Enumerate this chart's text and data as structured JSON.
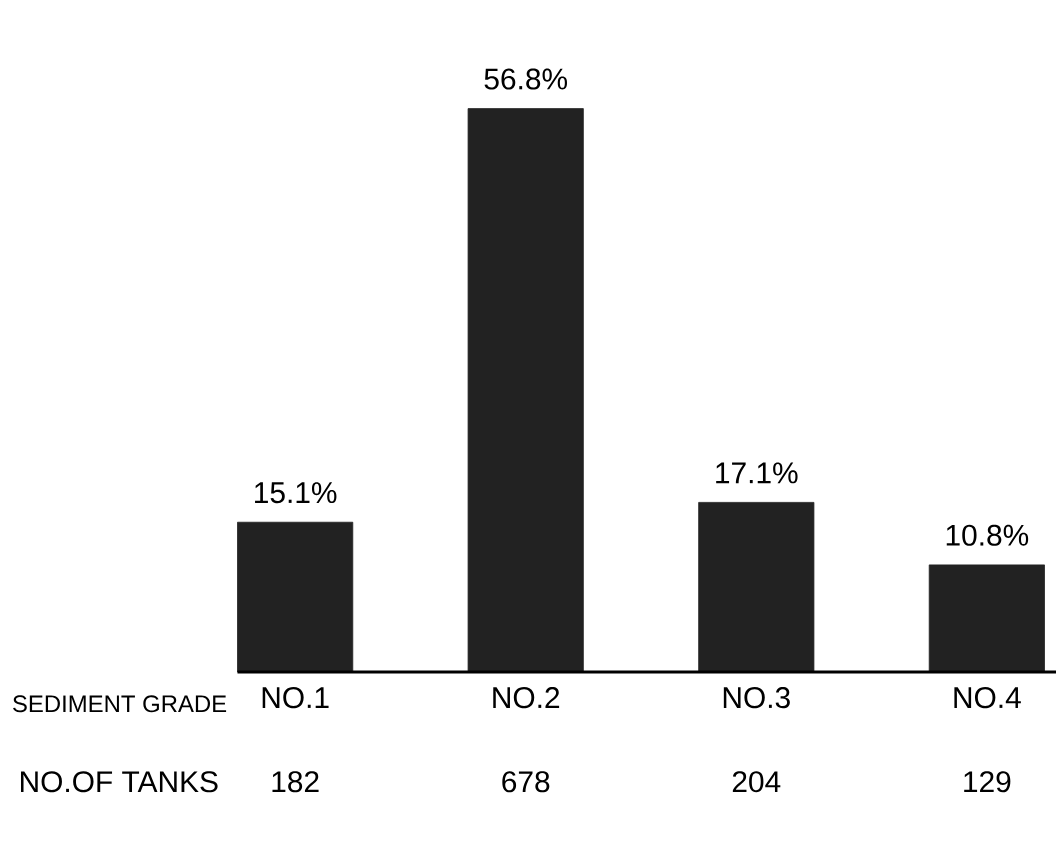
{
  "chart_data": {
    "type": "bar",
    "xlabel": "SEDIMENT GRADE",
    "categories": [
      "NO.1",
      "NO.2",
      "NO.3",
      "NO.4"
    ],
    "values": [
      15.1,
      56.8,
      17.1,
      10.8
    ],
    "value_labels": [
      "15.1%",
      "56.8%",
      "17.1%",
      "10.8%"
    ],
    "color": "#222222",
    "annotations": [
      "NO.OF TANKS",
      "182",
      "678",
      "204",
      "129"
    ]
  }
}
